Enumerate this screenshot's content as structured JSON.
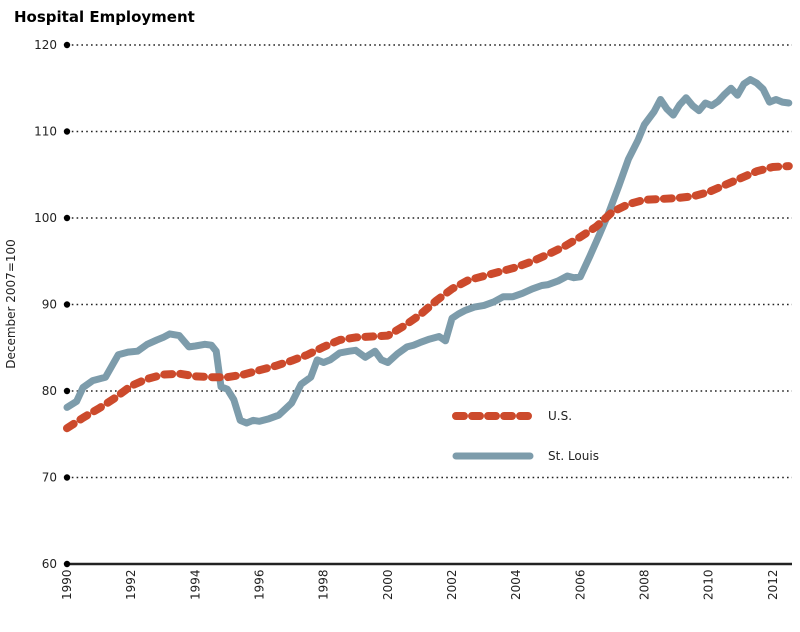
{
  "chart_data": {
    "type": "line",
    "title": "Hospital Employment",
    "xlabel": "",
    "ylabel": "December 2007=100",
    "xlim": [
      1990,
      2012.6
    ],
    "ylim": [
      60,
      120
    ],
    "y_ticks": [
      60,
      70,
      80,
      90,
      100,
      110,
      120
    ],
    "x_tick_labels": [
      "1990",
      "1992",
      "1994",
      "1996",
      "1998",
      "2000",
      "2002",
      "2004",
      "2006",
      "2008",
      "2010",
      "2012"
    ],
    "grid": true,
    "legend_position": "center-right",
    "series": [
      {
        "name": "U.S.",
        "style": "dotted",
        "color": "#cc4a2c",
        "x": [
          1990.0,
          1990.5,
          1991.0,
          1991.5,
          1992.0,
          1992.5,
          1993.0,
          1993.5,
          1994.0,
          1994.5,
          1995.0,
          1995.5,
          1996.0,
          1996.5,
          1997.0,
          1997.5,
          1998.0,
          1998.5,
          1999.0,
          1999.5,
          2000.0,
          2000.5,
          2001.0,
          2001.5,
          2002.0,
          2002.5,
          2003.0,
          2003.5,
          2004.0,
          2004.5,
          2005.0,
          2005.5,
          2006.0,
          2006.5,
          2007.0,
          2007.5,
          2008.0,
          2008.5,
          2009.0,
          2009.5,
          2010.0,
          2010.5,
          2011.0,
          2011.5,
          2012.0,
          2012.5
        ],
        "y": [
          75.7,
          76.9,
          78.0,
          79.2,
          80.6,
          81.4,
          81.9,
          82.0,
          81.7,
          81.6,
          81.6,
          81.9,
          82.4,
          82.9,
          83.5,
          84.2,
          85.1,
          85.9,
          86.2,
          86.3,
          86.4,
          87.5,
          88.8,
          90.4,
          91.8,
          92.8,
          93.3,
          93.8,
          94.3,
          95.0,
          95.8,
          96.7,
          97.8,
          99.0,
          100.7,
          101.6,
          102.1,
          102.2,
          102.3,
          102.5,
          103.0,
          103.8,
          104.6,
          105.4,
          105.9,
          106.0
        ]
      },
      {
        "name": "St. Louis",
        "style": "solid",
        "color": "#7d9cab",
        "x": [
          1990.0,
          1990.3,
          1990.5,
          1990.8,
          1991.2,
          1991.6,
          1991.9,
          1992.2,
          1992.5,
          1992.8,
          1993.0,
          1993.2,
          1993.5,
          1993.8,
          1994.0,
          1994.3,
          1994.5,
          1994.65,
          1994.8,
          1995.0,
          1995.2,
          1995.4,
          1995.6,
          1995.8,
          1996.0,
          1996.3,
          1996.6,
          1996.8,
          1997.0,
          1997.3,
          1997.6,
          1997.8,
          1998.0,
          1998.2,
          1998.5,
          1998.8,
          1999.0,
          1999.3,
          1999.6,
          1999.8,
          2000.0,
          2000.3,
          2000.6,
          2000.8,
          2001.0,
          2001.3,
          2001.6,
          2001.8,
          2002.0,
          2002.2,
          2002.4,
          2002.7,
          2003.0,
          2003.3,
          2003.6,
          2003.9,
          2004.2,
          2004.5,
          2004.8,
          2005.0,
          2005.3,
          2005.6,
          2005.8,
          2006.0,
          2006.3,
          2006.6,
          2006.9,
          2007.2,
          2007.5,
          2007.8,
          2008.0,
          2008.3,
          2008.5,
          2008.7,
          2008.9,
          2009.1,
          2009.3,
          2009.5,
          2009.7,
          2009.9,
          2010.1,
          2010.3,
          2010.5,
          2010.7,
          2010.9,
          2011.1,
          2011.3,
          2011.5,
          2011.7,
          2011.9,
          2012.1,
          2012.3,
          2012.5
        ],
        "y": [
          78.1,
          78.8,
          80.4,
          81.2,
          81.6,
          84.2,
          84.5,
          84.6,
          85.4,
          85.9,
          86.2,
          86.6,
          86.4,
          85.1,
          85.2,
          85.4,
          85.3,
          84.6,
          80.5,
          80.2,
          79.0,
          76.6,
          76.3,
          76.6,
          76.5,
          76.8,
          77.2,
          77.9,
          78.6,
          80.8,
          81.6,
          83.6,
          83.3,
          83.6,
          84.4,
          84.6,
          84.7,
          83.9,
          84.6,
          83.6,
          83.3,
          84.3,
          85.1,
          85.3,
          85.6,
          86.0,
          86.3,
          85.8,
          88.4,
          88.9,
          89.3,
          89.7,
          89.9,
          90.3,
          90.9,
          90.9,
          91.3,
          91.8,
          92.2,
          92.3,
          92.7,
          93.3,
          93.1,
          93.2,
          95.6,
          98.1,
          100.7,
          103.7,
          106.8,
          109.0,
          110.8,
          112.3,
          113.7,
          112.6,
          111.9,
          113.1,
          113.9,
          113.0,
          112.4,
          113.3,
          113.0,
          113.5,
          114.3,
          115.0,
          114.2,
          115.5,
          116.0,
          115.6,
          114.9,
          113.4,
          113.7,
          113.4,
          113.3
        ]
      }
    ]
  }
}
